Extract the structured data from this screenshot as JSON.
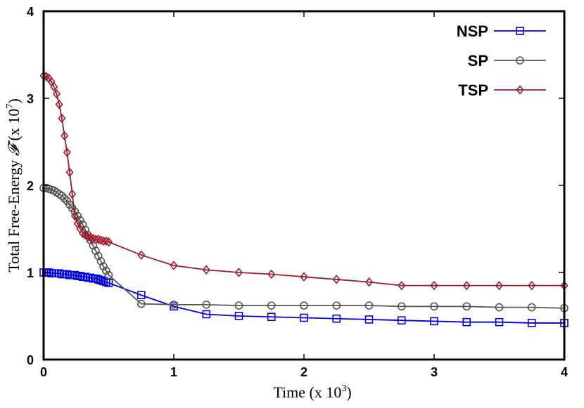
{
  "chart_data": {
    "type": "line",
    "xlabel": "Time (x 10",
    "xlabel_exp": "3",
    "xlabel_end": ")",
    "ylabel": "Total Free-Energy",
    "ylabel_symbol": "𝓕",
    "ylabel_unit": "(x 10",
    "ylabel_exp": "7",
    "ylabel_end": ")",
    "xlim": [
      0,
      4
    ],
    "ylim": [
      0,
      4
    ],
    "xticks": [
      "0",
      "1",
      "2",
      "3",
      "4"
    ],
    "yticks": [
      "0",
      "1",
      "2",
      "3",
      "4"
    ],
    "grid": false,
    "legend_position": "top-right",
    "series": [
      {
        "name": "NSP",
        "color": "#0000e0",
        "marker": "square",
        "x": [
          0,
          0.02,
          0.04,
          0.06,
          0.08,
          0.1,
          0.12,
          0.14,
          0.16,
          0.18,
          0.2,
          0.22,
          0.24,
          0.26,
          0.28,
          0.3,
          0.32,
          0.34,
          0.36,
          0.38,
          0.4,
          0.42,
          0.44,
          0.46,
          0.48,
          0.5,
          0.75,
          1.0,
          1.25,
          1.5,
          1.75,
          2.0,
          2.25,
          2.5,
          2.75,
          3.0,
          3.25,
          3.5,
          3.75,
          4.0
        ],
        "y": [
          1.0,
          1.0,
          1.0,
          0.99,
          0.99,
          0.99,
          0.99,
          0.98,
          0.98,
          0.98,
          0.97,
          0.97,
          0.97,
          0.96,
          0.96,
          0.95,
          0.95,
          0.94,
          0.94,
          0.93,
          0.93,
          0.92,
          0.91,
          0.9,
          0.89,
          0.88,
          0.74,
          0.61,
          0.52,
          0.5,
          0.49,
          0.48,
          0.47,
          0.46,
          0.45,
          0.44,
          0.43,
          0.43,
          0.42,
          0.42
        ]
      },
      {
        "name": "SP",
        "color": "#555555",
        "marker": "circle",
        "x": [
          0,
          0.02,
          0.04,
          0.06,
          0.08,
          0.1,
          0.12,
          0.14,
          0.16,
          0.18,
          0.2,
          0.22,
          0.24,
          0.26,
          0.28,
          0.3,
          0.32,
          0.34,
          0.36,
          0.38,
          0.4,
          0.42,
          0.44,
          0.46,
          0.48,
          0.5,
          0.75,
          1.0,
          1.25,
          1.5,
          1.75,
          2.0,
          2.25,
          2.5,
          2.75,
          3.0,
          3.25,
          3.5,
          3.75,
          4.0
        ],
        "y": [
          1.97,
          1.97,
          1.96,
          1.95,
          1.94,
          1.92,
          1.9,
          1.88,
          1.85,
          1.82,
          1.78,
          1.74,
          1.7,
          1.65,
          1.6,
          1.55,
          1.49,
          1.43,
          1.37,
          1.31,
          1.25,
          1.19,
          1.13,
          1.07,
          1.02,
          0.97,
          0.64,
          0.63,
          0.63,
          0.62,
          0.62,
          0.62,
          0.62,
          0.62,
          0.61,
          0.61,
          0.61,
          0.6,
          0.6,
          0.59
        ]
      },
      {
        "name": "TSP",
        "color": "#a01c2c",
        "marker": "diamond",
        "x": [
          0,
          0.02,
          0.04,
          0.06,
          0.08,
          0.1,
          0.12,
          0.14,
          0.16,
          0.18,
          0.2,
          0.22,
          0.24,
          0.26,
          0.28,
          0.3,
          0.32,
          0.34,
          0.36,
          0.38,
          0.4,
          0.42,
          0.44,
          0.46,
          0.48,
          0.5,
          0.75,
          1.0,
          1.25,
          1.5,
          1.75,
          2.0,
          2.25,
          2.5,
          2.75,
          3.0,
          3.25,
          3.5,
          3.75,
          4.0
        ],
        "y": [
          3.26,
          3.25,
          3.23,
          3.19,
          3.13,
          3.05,
          2.93,
          2.77,
          2.57,
          2.38,
          2.15,
          1.9,
          1.65,
          1.56,
          1.5,
          1.45,
          1.43,
          1.41,
          1.4,
          1.39,
          1.38,
          1.38,
          1.37,
          1.36,
          1.36,
          1.35,
          1.2,
          1.08,
          1.03,
          1.0,
          0.98,
          0.95,
          0.92,
          0.89,
          0.85,
          0.85,
          0.85,
          0.85,
          0.85,
          0.85
        ]
      }
    ]
  }
}
